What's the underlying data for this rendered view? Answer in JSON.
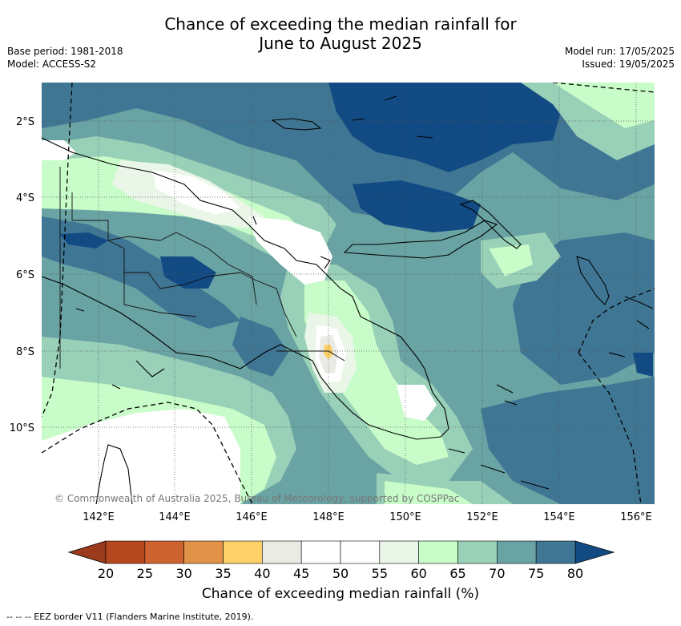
{
  "title_line1": "Chance of exceeding the median rainfall for",
  "title_line2": "June to August 2025",
  "base_period": "Base period: 1981-2018",
  "model": "Model: ACCESS-S2",
  "model_run": "Model run: 17/05/2025",
  "issued": "Issued: 19/05/2025",
  "copyright": "© Commonwealth of Australia 2025, Bureau of Meteorology, supported by COSPPac",
  "lon_labels": [
    "142°E",
    "144°E",
    "146°E",
    "148°E",
    "150°E",
    "152°E",
    "154°E",
    "156°E"
  ],
  "lat_labels": [
    "2°S",
    "4°S",
    "6°S",
    "8°S",
    "10°S"
  ],
  "colorbar": {
    "ticks": [
      "20",
      "25",
      "30",
      "35",
      "40",
      "45",
      "50",
      "55",
      "60",
      "65",
      "70",
      "75",
      "80"
    ],
    "colors": [
      "#b5481f",
      "#cd6430",
      "#e2934a",
      "#fdd068",
      "#ebebe6",
      "#ffffff",
      "#ffffff",
      "#eaf6e8",
      "#c8fcc8",
      "#98d0b8",
      "#6aa3a3",
      "#3f7694"
    ],
    "under_color": "#9b3a1c",
    "over_color": "#124b84",
    "label": "Chance of exceeding median rainfall (%)"
  },
  "footer": "-- -- -- EEZ border V11 (Flanders Marine Institute, 2019).",
  "colors": {
    "c80": "#124b84",
    "c75": "#3f7694",
    "c70": "#6aa3a3",
    "c65": "#98d0b8",
    "c60": "#c8fcc8",
    "c55": "#eaf6e8",
    "c50": "#ffffff",
    "c40": "#ebebe6",
    "c35": "#fdd068"
  }
}
